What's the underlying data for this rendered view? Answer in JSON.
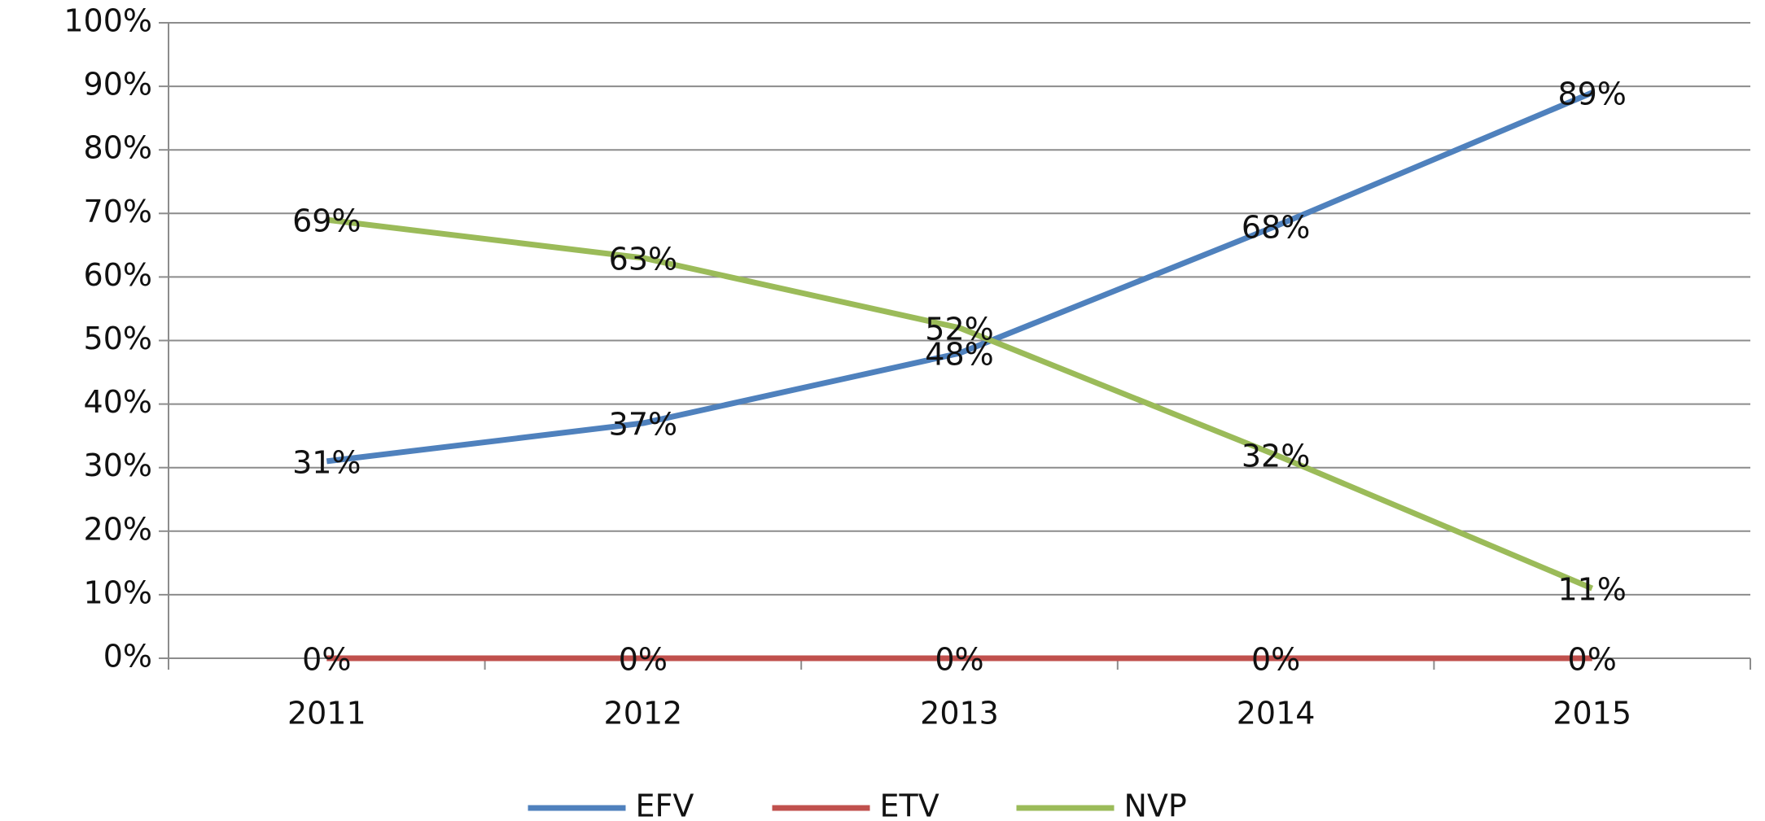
{
  "chart_data": {
    "type": "line",
    "categories": [
      "2011",
      "2012",
      "2013",
      "2014",
      "2015"
    ],
    "series": [
      {
        "name": "EFV",
        "color": "#4f81bd",
        "values": [
          31,
          37,
          48,
          68,
          89
        ],
        "value_labels": [
          "31%",
          "37%",
          "48%",
          "68%",
          "89%"
        ]
      },
      {
        "name": "ETV",
        "color": "#c0504d",
        "values": [
          0,
          0,
          0,
          0,
          0
        ],
        "value_labels": [
          "0%",
          "0%",
          "0%",
          "0%",
          "0%"
        ]
      },
      {
        "name": "NVP",
        "color": "#9bbb59",
        "values": [
          69,
          63,
          52,
          32,
          11
        ],
        "value_labels": [
          "69%",
          "63%",
          "52%",
          "32%",
          "11%"
        ]
      }
    ],
    "ylim": [
      0,
      100
    ],
    "yticks": [
      {
        "value": 0,
        "label": "0%"
      },
      {
        "value": 10,
        "label": "10%"
      },
      {
        "value": 20,
        "label": "20%"
      },
      {
        "value": 30,
        "label": "30%"
      },
      {
        "value": 40,
        "label": "40%"
      },
      {
        "value": 50,
        "label": "50%"
      },
      {
        "value": 60,
        "label": "60%"
      },
      {
        "value": 70,
        "label": "70%"
      },
      {
        "value": 80,
        "label": "80%"
      },
      {
        "value": 90,
        "label": "90%"
      },
      {
        "value": 100,
        "label": "100%"
      }
    ],
    "grid": true,
    "legend": "bottom"
  }
}
